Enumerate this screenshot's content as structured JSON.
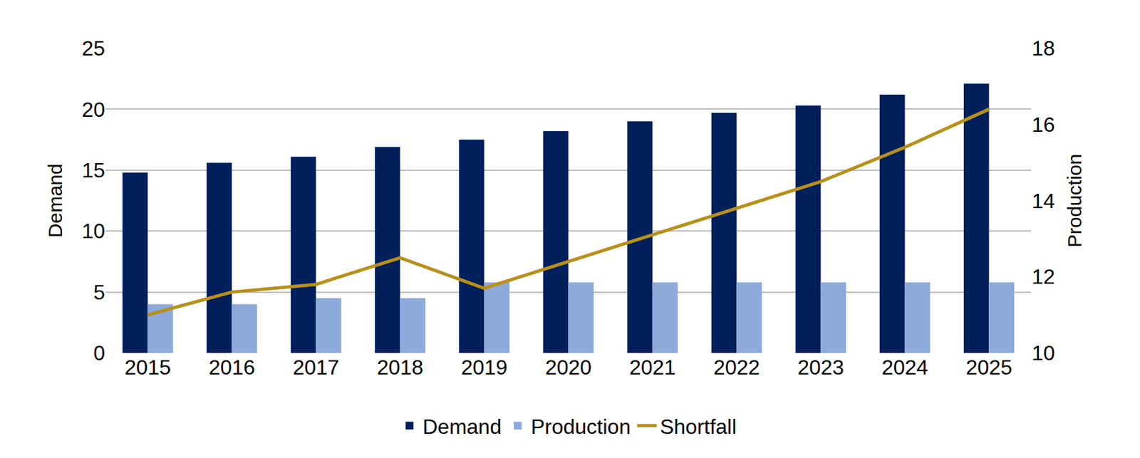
{
  "chart_data": {
    "type": "bar",
    "categories": [
      "2015",
      "2016",
      "2017",
      "2018",
      "2019",
      "2020",
      "2021",
      "2022",
      "2023",
      "2024",
      "2025"
    ],
    "series": [
      {
        "name": "Demand",
        "type": "bar",
        "color": "#001f5b",
        "values": [
          14.8,
          15.6,
          16.1,
          16.9,
          17.5,
          18.2,
          19.0,
          19.7,
          20.3,
          21.2,
          22.1
        ]
      },
      {
        "name": "Production",
        "type": "bar",
        "color": "#8eaadb",
        "values": [
          4.0,
          4.0,
          4.5,
          4.5,
          5.8,
          5.8,
          5.8,
          5.8,
          5.8,
          5.8,
          5.8
        ]
      },
      {
        "name": "Shortfall",
        "type": "line",
        "axis": "y2",
        "color": "#b8901a",
        "values": [
          11.0,
          11.6,
          11.8,
          12.5,
          11.7,
          12.4,
          13.1,
          13.8,
          14.5,
          15.4,
          16.4
        ]
      }
    ],
    "y_label": "Demand",
    "y2_label": "Production",
    "ylim": [
      0,
      25
    ],
    "yticks": [
      0,
      5,
      10,
      15,
      20,
      25
    ],
    "y2lim": [
      10,
      18
    ],
    "y2ticks": [
      10,
      12,
      14,
      16,
      18
    ],
    "grid": true,
    "legend": "bottom"
  }
}
